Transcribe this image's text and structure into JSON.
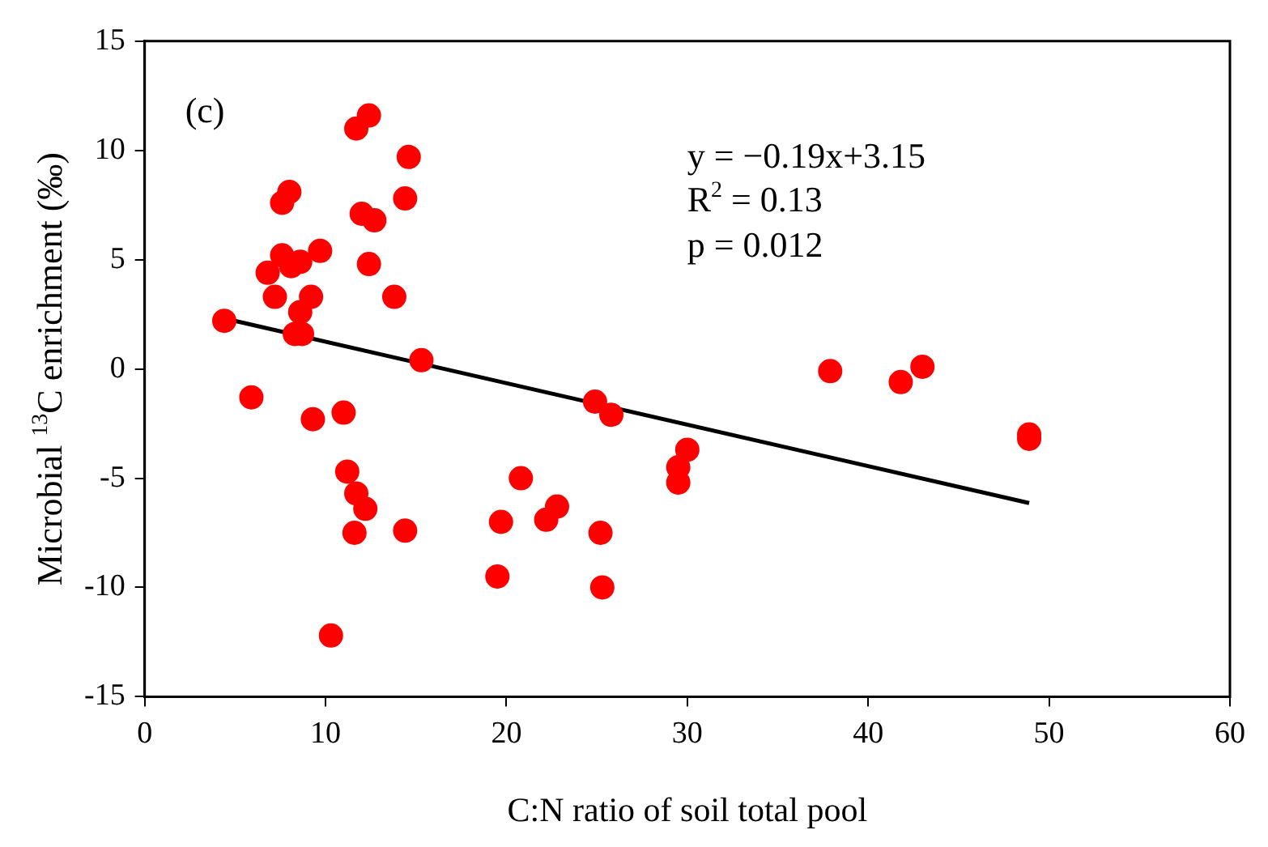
{
  "chart_data": {
    "type": "scatter",
    "xlabel": "C:N ratio of soil total pool",
    "ylabel": "Microbial $^{13}$C enrichment (‰)",
    "annotations": [
      "(c)",
      "y = −0.19x+3.15",
      "R$^{2}$ = 0.13",
      "p = 0.012"
    ],
    "xlim": [
      0,
      60
    ],
    "xticks": [
      0,
      10,
      20,
      30,
      40,
      50,
      60
    ],
    "ylim": [
      -15,
      15
    ],
    "yticks": [
      -15,
      -10,
      -5,
      0,
      5,
      10,
      15
    ],
    "grid": false,
    "legend": false,
    "marker": "circle",
    "series": [
      {
        "color": "#ff0000",
        "x": [
          4.4,
          5.9,
          6.8,
          7.2,
          7.6,
          8.0,
          7.6,
          8.1,
          8.6,
          8.6,
          8.3,
          8.7,
          9.2,
          9.3,
          9.7,
          10.3,
          11.0,
          11.2,
          11.7,
          11.6,
          12.2,
          11.7,
          12.4,
          12.0,
          12.7,
          12.4,
          13.8,
          14.4,
          14.6,
          14.4,
          15.3,
          19.5,
          19.7,
          20.8,
          22.2,
          22.8,
          24.9,
          25.8,
          25.2,
          25.3,
          30.0,
          29.5,
          29.5,
          37.9,
          41.8,
          43.0,
          48.9,
          48.9
        ],
        "values": [
          2.2,
          -1.3,
          4.4,
          3.3,
          7.6,
          8.1,
          5.2,
          4.7,
          4.9,
          2.6,
          1.6,
          1.6,
          3.3,
          -2.3,
          5.4,
          -12.2,
          -2.0,
          -4.7,
          -5.7,
          -7.5,
          -6.4,
          11.0,
          11.6,
          7.1,
          6.8,
          4.8,
          3.3,
          7.8,
          9.7,
          -7.4,
          0.4,
          -9.5,
          -7.0,
          -5.0,
          -6.9,
          -6.3,
          -1.5,
          -2.1,
          -7.5,
          -10.0,
          -3.7,
          -4.5,
          -5.2,
          -0.1,
          -0.6,
          0.1,
          -3.2,
          -3.0
        ]
      },
      {
        "type": "line",
        "color": "#000000",
        "x": [
          4.4,
          48.9
        ],
        "values": [
          2.31,
          -6.14
        ],
        "marker": "none",
        "line_style": "solid"
      }
    ]
  }
}
